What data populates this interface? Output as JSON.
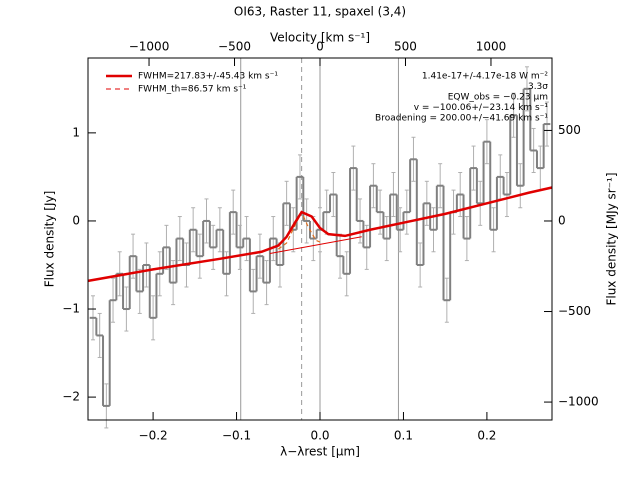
{
  "chart_data": {
    "type": "step",
    "title": "OI63, Raster 11, spaxel (3,4)",
    "xlabel": "λ−λrest [μm]",
    "ylabel": "Flux density [Jy]",
    "x2label": "Velocity [km s⁻¹]",
    "y2label": "Flux density [MJy sr⁻¹]",
    "xlim": [
      -0.278,
      0.278
    ],
    "ylim": [
      -2.26,
      1.85
    ],
    "x2lim": [
      -1357,
      1357
    ],
    "y2lim": [
      -1099,
      900
    ],
    "xticks": [
      {
        "value": -0.2,
        "label": "−0.2"
      },
      {
        "value": -0.1,
        "label": "−0.1"
      },
      {
        "value": 0,
        "label": "0.0"
      },
      0.1,
      0.2
    ],
    "yticks": [
      {
        "value": -2,
        "label": "−2"
      },
      {
        "value": -1,
        "label": "−1"
      },
      0,
      1
    ],
    "x2ticks": [
      {
        "value": -1000,
        "label": "−1000"
      },
      {
        "value": -500,
        "label": "−500"
      },
      0,
      500,
      1000
    ],
    "y2ticks": [
      {
        "value": -1000,
        "label": "−1000"
      },
      {
        "value": -500,
        "label": "−500"
      },
      0,
      500
    ],
    "x": [
      -0.272,
      -0.264,
      -0.256,
      -0.248,
      -0.24,
      -0.232,
      -0.224,
      -0.216,
      -0.208,
      -0.2,
      -0.192,
      -0.184,
      -0.176,
      -0.168,
      -0.16,
      -0.152,
      -0.144,
      -0.136,
      -0.128,
      -0.12,
      -0.112,
      -0.104,
      -0.096,
      -0.088,
      -0.08,
      -0.072,
      -0.064,
      -0.056,
      -0.048,
      -0.04,
      -0.032,
      -0.024,
      -0.016,
      -0.008,
      0,
      0.008,
      0.016,
      0.024,
      0.032,
      0.04,
      0.048,
      0.056,
      0.064,
      0.072,
      0.08,
      0.088,
      0.096,
      0.104,
      0.112,
      0.12,
      0.128,
      0.136,
      0.144,
      0.152,
      0.16,
      0.168,
      0.176,
      0.184,
      0.192,
      0.2,
      0.208,
      0.216,
      0.224,
      0.232,
      0.24,
      0.248,
      0.256,
      0.264,
      0.272
    ],
    "values": [
      -1.1,
      -1.3,
      -2.1,
      -0.9,
      -0.6,
      -1.0,
      -0.4,
      -0.8,
      -0.5,
      -1.1,
      -0.6,
      -0.3,
      -0.7,
      -0.2,
      -0.5,
      -0.1,
      -0.4,
      0.0,
      -0.3,
      -0.1,
      -0.6,
      0.1,
      -0.3,
      -0.2,
      -0.8,
      -0.4,
      -0.7,
      -0.2,
      -0.5,
      0.2,
      -0.1,
      0.5,
      0.0,
      -0.2,
      -0.1,
      0.1,
      0.3,
      -0.4,
      -0.6,
      0.6,
      0.0,
      -0.3,
      0.4,
      0.1,
      -0.2,
      0.3,
      -0.1,
      0.1,
      0.7,
      -0.5,
      0.2,
      -0.1,
      0.4,
      -0.9,
      0.1,
      0.3,
      -0.2,
      0.6,
      0.2,
      0.9,
      -0.1,
      0.5,
      0.3,
      1.2,
      0.4,
      1.5,
      0.8,
      0.6,
      1.1
    ],
    "error": 0.25,
    "color": "#808080",
    "error_color": "#b0b0b0",
    "fit": {
      "name": "FWHM=217.83+/-45.43 km s⁻¹",
      "color": "#e00000",
      "x": [
        -0.278,
        -0.2,
        -0.12,
        -0.07,
        -0.05,
        -0.04,
        -0.03,
        -0.022,
        -0.01,
        0,
        0.01,
        0.03,
        0.06,
        0.1,
        0.15,
        0.2,
        0.25,
        0.278
      ],
      "y": [
        -0.68,
        -0.55,
        -0.43,
        -0.35,
        -0.28,
        -0.18,
        -0.02,
        0.1,
        0.05,
        -0.08,
        -0.15,
        -0.17,
        -0.1,
        -0.02,
        0.08,
        0.2,
        0.32,
        0.38
      ]
    },
    "fit_th": {
      "name": "FWHM_th=86.57 km s⁻¹",
      "color": "#e07020",
      "x": [
        -0.05,
        -0.04,
        -0.03,
        -0.022,
        -0.015,
        -0.005,
        0
      ],
      "y": [
        -0.32,
        -0.25,
        -0.05,
        0.1,
        -0.05,
        -0.22,
        -0.24
      ]
    },
    "continuum": {
      "x": [
        -0.06,
        0.05
      ],
      "y": [
        -0.37,
        -0.18
      ]
    },
    "vlines": [
      {
        "x": -0.095,
        "style": "solid"
      },
      {
        "x": 0,
        "style": "solid"
      },
      {
        "x": 0.094,
        "style": "solid"
      },
      {
        "x": -0.022,
        "style": "dashed"
      }
    ],
    "annotations": [
      "1.41e-17+/-4.17e-18 W m⁻²",
      "3.3σ",
      "EQW_obs = −0.23 μm",
      "v = −100.06+/−23.14 km s⁻¹",
      "Broadening = 200.00+/−41.69 km s⁻¹"
    ]
  }
}
